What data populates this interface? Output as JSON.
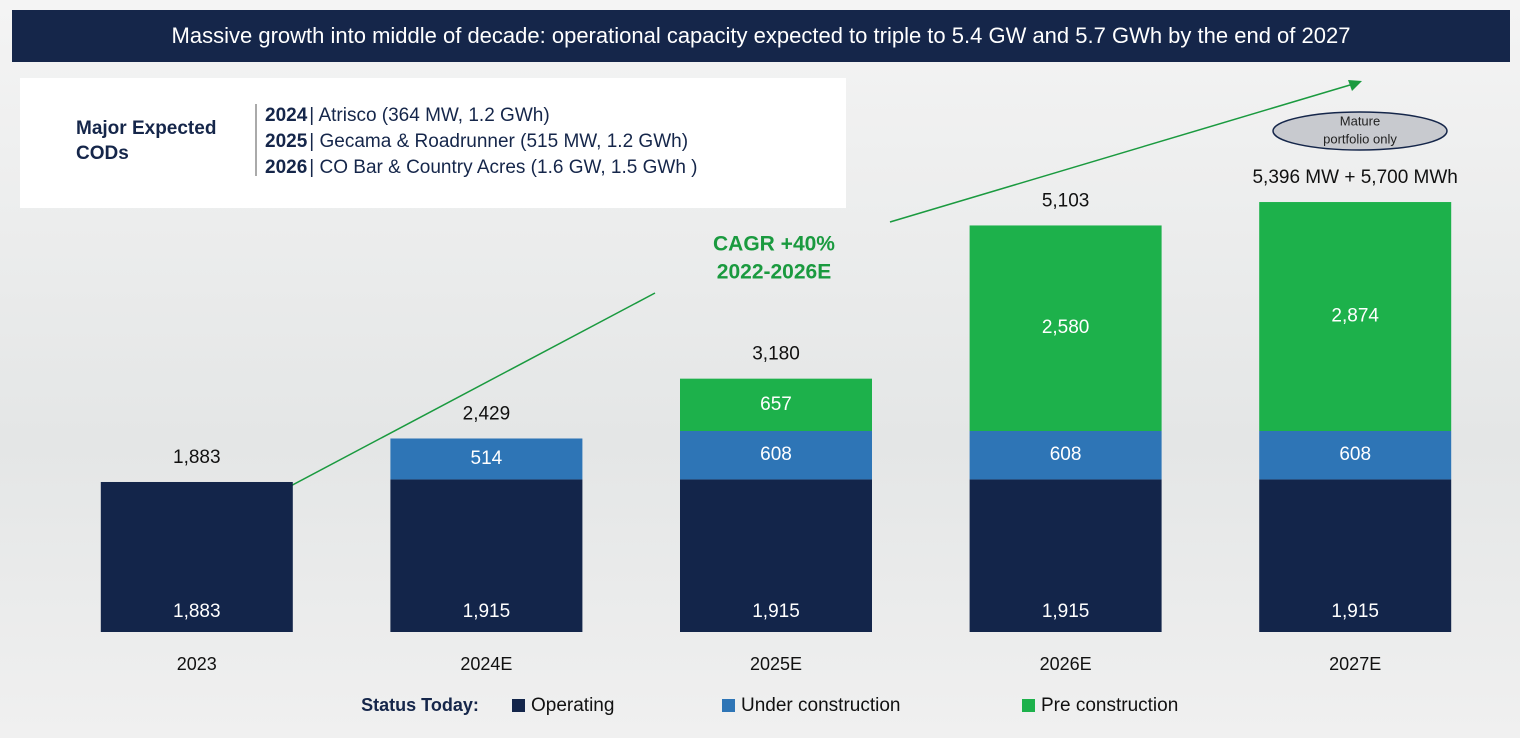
{
  "chart_data": {
    "type": "bar",
    "stacked": true,
    "title": "Massive growth into middle of decade: operational capacity expected to triple to 5.4 GW and 5.7 GWh by the end of 2027",
    "categories": [
      "2023",
      "2024E",
      "2025E",
      "2026E",
      "2027E"
    ],
    "series": [
      {
        "name": "Operating",
        "color": "#13254a",
        "values": [
          1883,
          1915,
          1915,
          1915,
          1915
        ],
        "value_labels": [
          "1,883",
          "1,915",
          "1,915",
          "1,915",
          "1,915"
        ]
      },
      {
        "name": "Under construction",
        "color": "#2e75b6",
        "values": [
          null,
          514,
          608,
          608,
          608
        ],
        "value_labels": [
          null,
          "514",
          "608",
          "608",
          "608"
        ]
      },
      {
        "name": "Pre construction",
        "color": "#1db14b",
        "values": [
          null,
          null,
          657,
          2580,
          2874
        ],
        "value_labels": [
          null,
          null,
          "657",
          "2,580",
          "2,874"
        ]
      }
    ],
    "totals": [
      1883,
      2429,
      3180,
      5103,
      5396
    ],
    "total_labels": [
      "1,883",
      "2,429",
      "3,180",
      "5,103",
      "5,396 MW + 5,700 MWh"
    ],
    "ylim": [
      0,
      6000
    ],
    "legend_title": "Status Today:",
    "legend_position": "bottom",
    "cagr_annotation": [
      "CAGR +40%",
      "2022-2026E"
    ],
    "portfolio_note": [
      "Mature",
      "portfolio only"
    ],
    "cods": {
      "heading": [
        "Major Expected",
        "CODs"
      ],
      "rows": [
        {
          "year": "2024",
          "text": "| Atrisco (364 MW, 1.2 GWh)"
        },
        {
          "year": "2025",
          "text": "| Gecama & Roadrunner (515 MW, 1.2 GWh)"
        },
        {
          "year": "2026",
          "text": "| CO Bar & Country Acres (1.6 GW, 1.5 GWh )"
        }
      ]
    }
  }
}
